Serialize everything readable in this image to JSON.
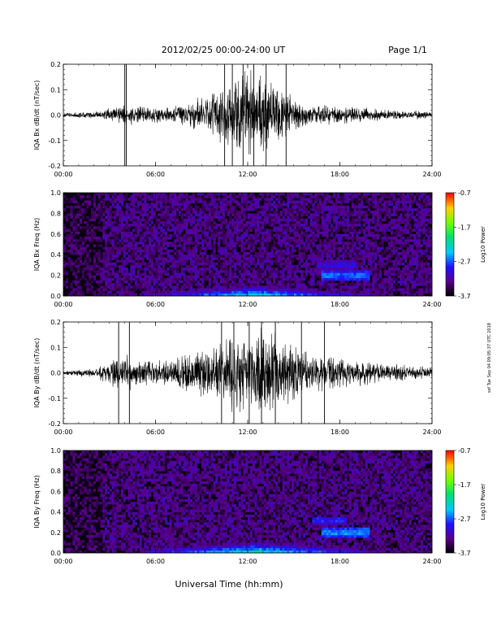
{
  "header": {
    "title": "2012/02/25  00:00-24:00 UT",
    "page": "Page 1/1",
    "sidenote": "ssf Tue Sep 04 09:05:37 UTC 2018"
  },
  "footer": {
    "xlabel": "Universal Time (hh:mm)"
  },
  "chart_data": [
    {
      "type": "line",
      "ylabel": "IQA Bx dB/dt (nT/sec)",
      "xlim": [
        0,
        24
      ],
      "ylim": [
        -0.2,
        0.2
      ],
      "x_ticks": [
        "00:00",
        "06:00",
        "12:00",
        "18:00",
        "24:00"
      ],
      "y_ticks": [
        "0.2",
        "0.1",
        "0.0",
        "-0.1",
        "-0.2"
      ],
      "envelope": {
        "x_hours": [
          0,
          2,
          3,
          4,
          5,
          6,
          7,
          8,
          9,
          10,
          11,
          12,
          13,
          14,
          15,
          16,
          17,
          18,
          19,
          20,
          21,
          22,
          23,
          24
        ],
        "amplitude": [
          0.01,
          0.015,
          0.03,
          0.05,
          0.04,
          0.035,
          0.04,
          0.06,
          0.08,
          0.11,
          0.16,
          0.2,
          0.18,
          0.14,
          0.07,
          0.05,
          0.045,
          0.04,
          0.035,
          0.03,
          0.025,
          0.02,
          0.02,
          0.015
        ]
      },
      "spikes_hours": [
        4.0,
        4.1,
        10.5,
        11.0,
        11.7,
        12.4,
        13.2,
        14.5
      ]
    },
    {
      "type": "heatmap",
      "ylabel": "IQA Bx Freq (Hz)",
      "xlim": [
        0,
        24
      ],
      "ylim": [
        0.0,
        1.0
      ],
      "x_ticks": [
        "00:00",
        "06:00",
        "12:00",
        "18:00",
        "24:00"
      ],
      "y_ticks": [
        "1.0",
        "0.8",
        "0.6",
        "0.4",
        "0.2",
        "0.0"
      ],
      "colorbar": {
        "label": "Log10 Power",
        "range": [
          -3.7,
          -0.7
        ],
        "ticks": [
          "-0.7",
          "-1.7",
          "-2.7",
          "-3.7"
        ]
      },
      "features": [
        {
          "type": "band",
          "freq": 0.2,
          "start_hour": 16.8,
          "end_hour": 20.0,
          "level": -2.6
        },
        {
          "type": "band",
          "freq": 0.3,
          "start_hour": 16.5,
          "end_hour": 19.0,
          "level": -2.9
        },
        {
          "type": "lowfreq",
          "start_hour": 9.0,
          "end_hour": 16.0,
          "level": -2.2
        }
      ]
    },
    {
      "type": "line",
      "ylabel": "IQA By dB/dt (nT/sec)",
      "xlim": [
        0,
        24
      ],
      "ylim": [
        -0.2,
        0.2
      ],
      "x_ticks": [
        "00:00",
        "06:00",
        "12:00",
        "18:00",
        "24:00"
      ],
      "y_ticks": [
        "0.2",
        "0.1",
        "0.0",
        "-0.1",
        "-0.2"
      ],
      "envelope": {
        "x_hours": [
          0,
          2,
          3,
          4,
          5,
          6,
          7,
          8,
          9,
          10,
          11,
          12,
          13,
          14,
          15,
          16,
          17,
          18,
          19,
          20,
          21,
          22,
          23,
          24
        ],
        "amplitude": [
          0.01,
          0.02,
          0.05,
          0.08,
          0.06,
          0.05,
          0.07,
          0.09,
          0.1,
          0.12,
          0.17,
          0.2,
          0.19,
          0.16,
          0.12,
          0.09,
          0.08,
          0.07,
          0.06,
          0.05,
          0.04,
          0.035,
          0.03,
          0.03
        ]
      },
      "spikes_hours": [
        3.6,
        4.3,
        10.3,
        11.1,
        12.1,
        12.9,
        13.8,
        15.5,
        17.0
      ]
    },
    {
      "type": "heatmap",
      "ylabel": "IQA By Freq (Hz)",
      "xlim": [
        0,
        24
      ],
      "ylim": [
        0.0,
        1.0
      ],
      "x_ticks": [
        "00:00",
        "06:00",
        "12:00",
        "18:00",
        "24:00"
      ],
      "y_ticks": [
        "1.0",
        "0.8",
        "0.6",
        "0.4",
        "0.2",
        "0.0"
      ],
      "colorbar": {
        "label": "Log10 Power",
        "range": [
          -3.7,
          -0.7
        ],
        "ticks": [
          "-0.7",
          "-1.7",
          "-2.7",
          "-3.7"
        ]
      },
      "features": [
        {
          "type": "band",
          "freq": 0.2,
          "start_hour": 16.8,
          "end_hour": 20.0,
          "level": -2.5
        },
        {
          "type": "band",
          "freq": 0.32,
          "start_hour": 16.2,
          "end_hour": 18.5,
          "level": -2.8
        },
        {
          "type": "lowfreq",
          "start_hour": 9.0,
          "end_hour": 16.0,
          "level": -2.1
        }
      ]
    }
  ]
}
